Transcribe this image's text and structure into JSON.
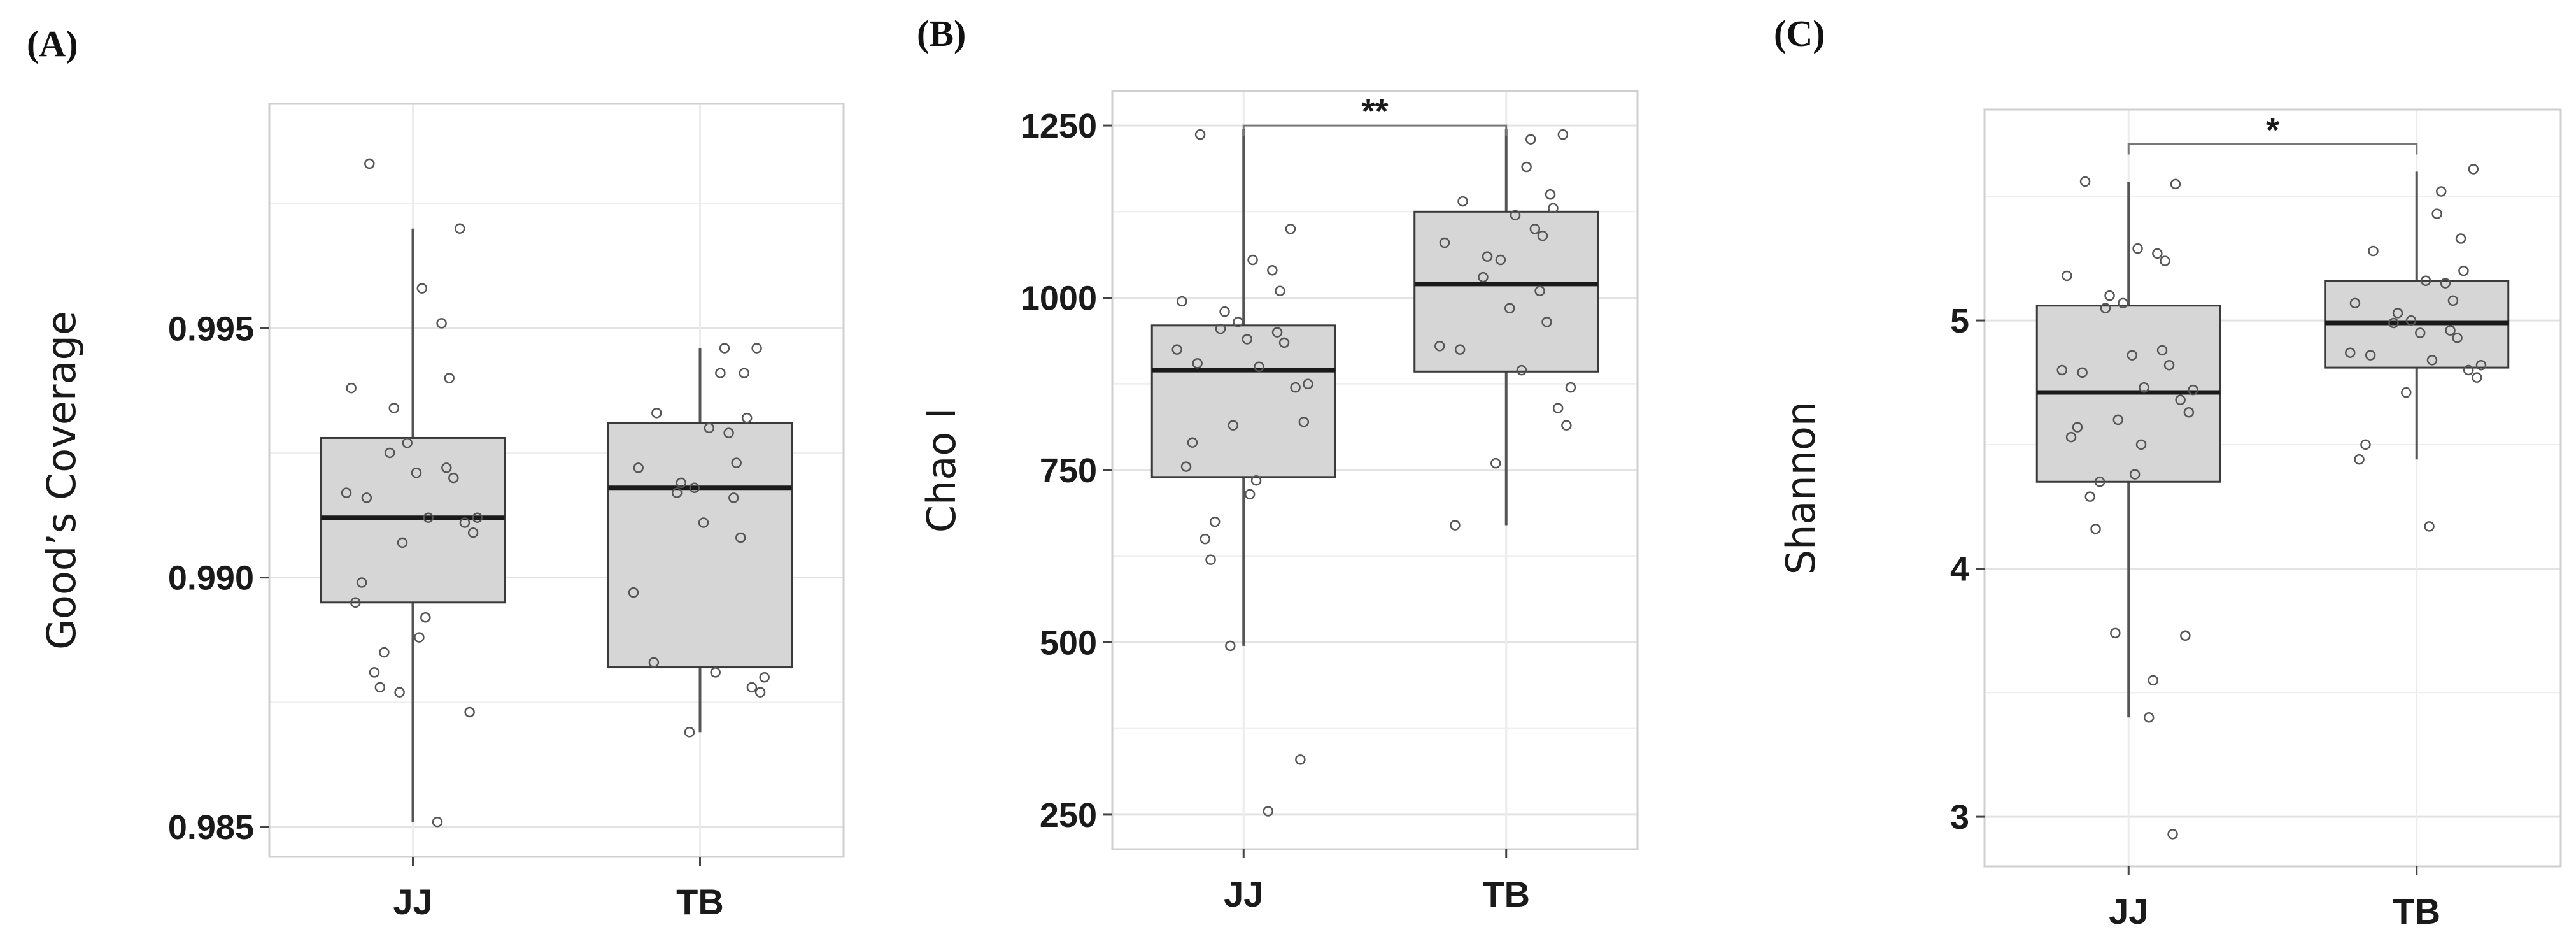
{
  "figure": {
    "panel_labels": [
      "(A)",
      "(B)",
      "(C)"
    ]
  },
  "chart_data": [
    {
      "type": "box",
      "panel": "(A)",
      "ylabel": "Good’s Coverage",
      "categories": [
        "JJ",
        "TB"
      ],
      "ylim": [
        0.9844,
        0.9995
      ],
      "yticks": [
        0.985,
        0.99,
        0.995
      ],
      "ytick_labels": [
        "0.985",
        "0.990",
        "0.995"
      ],
      "boxes": [
        {
          "name": "JJ",
          "whisker_low": 0.9851,
          "q1": 0.9895,
          "median": 0.9912,
          "q3": 0.9928,
          "whisker_high": 0.997
        },
        {
          "name": "TB",
          "whisker_low": 0.9869,
          "q1": 0.9882,
          "median": 0.9918,
          "q3": 0.9931,
          "whisker_high": 0.9946
        }
      ],
      "points": [
        [
          0.9983,
          0.997,
          0.9958,
          0.9951,
          0.994,
          0.9938,
          0.9934,
          0.9927,
          0.9925,
          0.9922,
          0.9921,
          0.992,
          0.9917,
          0.9916,
          0.9912,
          0.9912,
          0.9911,
          0.9909,
          0.9907,
          0.9899,
          0.9895,
          0.9892,
          0.9888,
          0.9885,
          0.9881,
          0.9878,
          0.9877,
          0.9873,
          0.9851
        ],
        [
          0.9946,
          0.9946,
          0.9941,
          0.9941,
          0.9933,
          0.9932,
          0.993,
          0.9929,
          0.9923,
          0.9922,
          0.9919,
          0.9918,
          0.9917,
          0.9916,
          0.9911,
          0.9908,
          0.9897,
          0.9883,
          0.9881,
          0.988,
          0.9878,
          0.9877,
          0.9869
        ]
      ],
      "significance": null
    },
    {
      "type": "box",
      "panel": "(B)",
      "ylabel": "Chao I",
      "categories": [
        "JJ",
        "TB"
      ],
      "ylim": [
        200,
        1300
      ],
      "yticks": [
        250,
        500,
        750,
        1000,
        1250
      ],
      "ytick_labels": [
        "250",
        "500",
        "750",
        "1000",
        "1250"
      ],
      "boxes": [
        {
          "name": "JJ",
          "whisker_low": 495,
          "q1": 740,
          "median": 895,
          "q3": 960,
          "whisker_high": 1245
        },
        {
          "name": "TB",
          "whisker_low": 670,
          "q1": 893,
          "median": 1020,
          "q3": 1125,
          "whisker_high": 1245
        }
      ],
      "points": [
        [
          1237,
          1100,
          1055,
          1040,
          1010,
          995,
          980,
          965,
          955,
          950,
          940,
          935,
          925,
          905,
          900,
          875,
          870,
          820,
          815,
          790,
          755,
          735,
          715,
          675,
          650,
          620,
          495,
          330,
          255
        ],
        [
          1237,
          1230,
          1190,
          1150,
          1140,
          1130,
          1120,
          1100,
          1090,
          1080,
          1060,
          1055,
          1030,
          1010,
          985,
          965,
          930,
          925,
          895,
          870,
          840,
          815,
          760,
          670
        ]
      ],
      "significance": {
        "label": "**",
        "between": [
          "JJ",
          "TB"
        ],
        "y": 1250
      }
    },
    {
      "type": "box",
      "panel": "(C)",
      "ylabel": "Shannon",
      "categories": [
        "JJ",
        "TB"
      ],
      "ylim": [
        2.8,
        5.85
      ],
      "yticks": [
        3,
        4,
        5
      ],
      "ytick_labels": [
        "3",
        "4",
        "5"
      ],
      "boxes": [
        {
          "name": "JJ",
          "whisker_low": 3.4,
          "q1": 4.35,
          "median": 4.71,
          "q3": 5.06,
          "whisker_high": 5.56
        },
        {
          "name": "TB",
          "whisker_low": 4.44,
          "q1": 4.81,
          "median": 4.99,
          "q3": 5.16,
          "whisker_high": 5.6
        }
      ],
      "points": [
        [
          5.56,
          5.55,
          5.29,
          5.27,
          5.24,
          5.18,
          5.1,
          5.07,
          5.05,
          4.88,
          4.86,
          4.82,
          4.8,
          4.79,
          4.73,
          4.72,
          4.68,
          4.63,
          4.6,
          4.57,
          4.53,
          4.5,
          4.38,
          4.35,
          4.29,
          4.16,
          3.74,
          3.73,
          3.55,
          3.4,
          2.93
        ],
        [
          5.61,
          5.52,
          5.43,
          5.33,
          5.28,
          5.2,
          5.16,
          5.15,
          5.08,
          5.07,
          5.03,
          5.0,
          4.99,
          4.96,
          4.95,
          4.93,
          4.87,
          4.86,
          4.84,
          4.82,
          4.8,
          4.77,
          4.71,
          4.5,
          4.44,
          4.17
        ]
      ],
      "significance": {
        "label": "*",
        "between": [
          "JJ",
          "TB"
        ],
        "y": 5.71
      }
    }
  ]
}
